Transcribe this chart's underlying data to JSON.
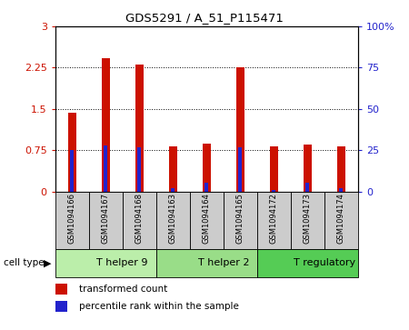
{
  "title": "GDS5291 / A_51_P115471",
  "samples": [
    "GSM1094166",
    "GSM1094167",
    "GSM1094168",
    "GSM1094163",
    "GSM1094164",
    "GSM1094165",
    "GSM1094172",
    "GSM1094173",
    "GSM1094174"
  ],
  "transformed_counts": [
    1.43,
    2.42,
    2.31,
    0.82,
    0.87,
    2.25,
    0.82,
    0.85,
    0.82
  ],
  "percentile_ranks": [
    25,
    28,
    27,
    2,
    5,
    27,
    1,
    5,
    2
  ],
  "groups": [
    {
      "label": "T helper 9",
      "start": 0,
      "end": 3
    },
    {
      "label": "T helper 2",
      "start": 3,
      "end": 6
    },
    {
      "label": "T regulatory",
      "start": 6,
      "end": 9
    }
  ],
  "group_colors": [
    "#bbeeaa",
    "#99dd88",
    "#55cc55"
  ],
  "left_yticks": [
    0,
    0.75,
    1.5,
    2.25,
    3
  ],
  "left_yticklabels": [
    "0",
    "0.75",
    "1.5",
    "2.25",
    "3"
  ],
  "right_yticks": [
    0,
    25,
    50,
    75,
    100
  ],
  "right_yticklabels": [
    "0",
    "25",
    "50",
    "75",
    "100%"
  ],
  "left_ylim": [
    0,
    3
  ],
  "right_ylim": [
    0,
    100
  ],
  "bar_color": "#cc1100",
  "percentile_color": "#2222cc",
  "bar_width": 0.25,
  "percentile_bar_width": 0.12
}
